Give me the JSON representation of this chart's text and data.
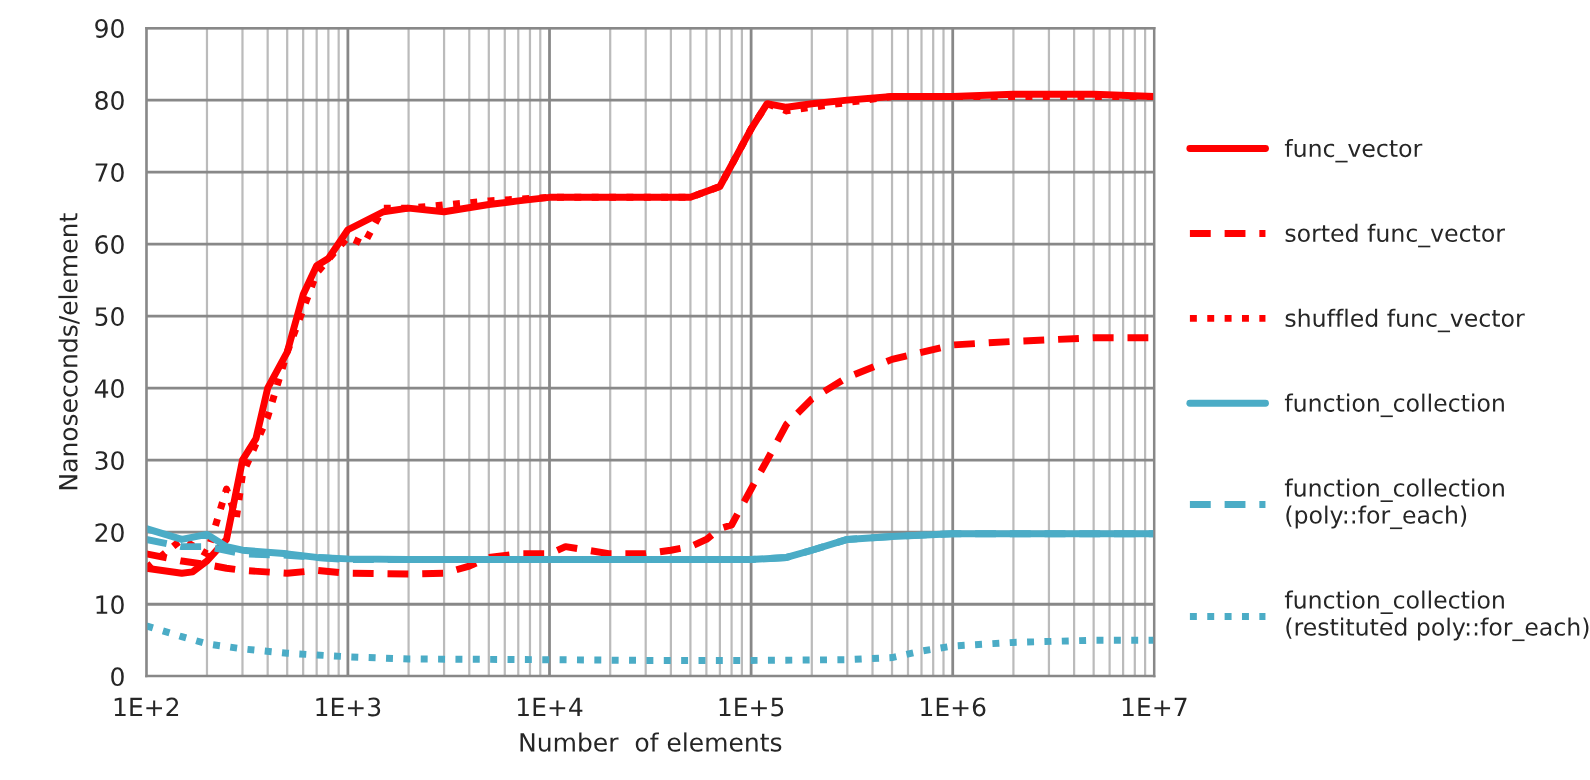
{
  "chart_data": {
    "type": "line",
    "xlabel": "Number  of elements",
    "ylabel": "Nanoseconds/element",
    "log": "x",
    "xlim": [
      100,
      10000000
    ],
    "xticks": [
      {
        "value": 100,
        "label": "1E+2"
      },
      {
        "value": 1000,
        "label": "1E+3"
      },
      {
        "value": 10000,
        "label": "1E+4"
      },
      {
        "value": 100000,
        "label": "1E+5"
      },
      {
        "value": 1000000,
        "label": "1E+6"
      },
      {
        "value": 10000000,
        "label": "1E+7"
      }
    ],
    "ylim": [
      0,
      90
    ],
    "yticks": [
      0,
      10,
      20,
      30,
      40,
      50,
      60,
      70,
      80,
      90
    ],
    "grid": true,
    "legend": "right",
    "marker": "none",
    "series": [
      {
        "name": "func_vector",
        "color": "#ff0000",
        "line_style": "solid",
        "x": [
          100,
          150,
          170,
          200,
          250,
          300,
          350,
          400,
          500,
          600,
          700,
          800,
          1000,
          1500,
          2000,
          3000,
          5000,
          7000,
          10000,
          20000,
          30000,
          50000,
          70000,
          100000,
          120000,
          150000,
          200000,
          300000,
          500000,
          1000000,
          2000000,
          5000000,
          10000000
        ],
        "values": [
          15,
          14.3,
          14.5,
          16,
          19,
          30,
          33,
          40,
          45,
          53,
          57,
          58,
          62,
          64.5,
          65,
          64.5,
          65.5,
          66,
          66.5,
          66.5,
          66.5,
          66.5,
          68,
          76,
          79.5,
          79,
          79.5,
          80,
          80.5,
          80.5,
          80.8,
          80.8,
          80.5
        ]
      },
      {
        "name": "sorted func_vector",
        "color": "#ff0000",
        "line_style": "dashed",
        "x": [
          100,
          150,
          200,
          250,
          300,
          500,
          700,
          1000,
          2000,
          3000,
          4000,
          5000,
          7000,
          10000,
          12000,
          20000,
          30000,
          40000,
          50000,
          60000,
          70000,
          80000,
          100000,
          120000,
          150000,
          200000,
          300000,
          500000,
          1000000,
          2000000,
          5000000,
          10000000
        ],
        "values": [
          17,
          16,
          15.5,
          15,
          14.7,
          14.3,
          14.7,
          14.3,
          14.2,
          14.3,
          15.3,
          16.5,
          17,
          17,
          18,
          17,
          17,
          17.5,
          18,
          19,
          20.5,
          21,
          26,
          30,
          35,
          38.5,
          41.5,
          44,
          46,
          46.5,
          47,
          47
        ]
      },
      {
        "name": "shuffled func_vector",
        "color": "#ff0000",
        "line_style": "dotted",
        "x": [
          100,
          150,
          200,
          250,
          280,
          300,
          400,
          500,
          700,
          1000,
          1200,
          1500,
          2000,
          5000,
          10000,
          50000,
          70000,
          100000,
          120000,
          150000,
          200000,
          500000,
          1000000,
          10000000
        ],
        "values": [
          15,
          19,
          17,
          26,
          22,
          28,
          36,
          45,
          56,
          61,
          60,
          65,
          65,
          66,
          66.5,
          66.5,
          68,
          76,
          79.5,
          78.5,
          79,
          80.5,
          80.5,
          80.5
        ]
      },
      {
        "name": "function_collection",
        "color": "#4bacc6",
        "line_style": "solid",
        "x": [
          100,
          150,
          200,
          250,
          300,
          500,
          700,
          1000,
          2000,
          10000,
          50000,
          100000,
          150000,
          200000,
          300000,
          500000,
          1000000,
          10000000
        ],
        "values": [
          20.5,
          19,
          19.7,
          18,
          17.5,
          17,
          16.5,
          16.3,
          16.2,
          16.2,
          16.2,
          16.2,
          16.5,
          17.5,
          19,
          19.4,
          19.8,
          19.8
        ]
      },
      {
        "name": "function_collection\n(poly::for_each)",
        "color": "#4bacc6",
        "line_style": "dashed",
        "x": [
          100,
          150,
          200,
          300,
          500,
          1000,
          2000,
          10000,
          50000,
          100000,
          150000,
          200000,
          300000,
          500000,
          1000000,
          10000000
        ],
        "values": [
          19,
          18,
          18,
          17,
          16.8,
          16.2,
          16.2,
          16.2,
          16.2,
          16.2,
          16.5,
          17.5,
          19,
          19.4,
          19.8,
          19.8
        ]
      },
      {
        "name": "function_collection\n(restituted poly::for_each)",
        "color": "#4bacc6",
        "line_style": "dotted",
        "x": [
          100,
          150,
          200,
          300,
          500,
          1000,
          2000,
          10000,
          30000,
          100000,
          300000,
          500000,
          700000,
          1000000,
          2000000,
          5000000,
          10000000
        ],
        "values": [
          7,
          5.5,
          4.5,
          3.8,
          3.2,
          2.7,
          2.4,
          2.3,
          2.2,
          2.2,
          2.3,
          2.6,
          3.5,
          4.2,
          4.7,
          5,
          5
        ]
      }
    ]
  }
}
